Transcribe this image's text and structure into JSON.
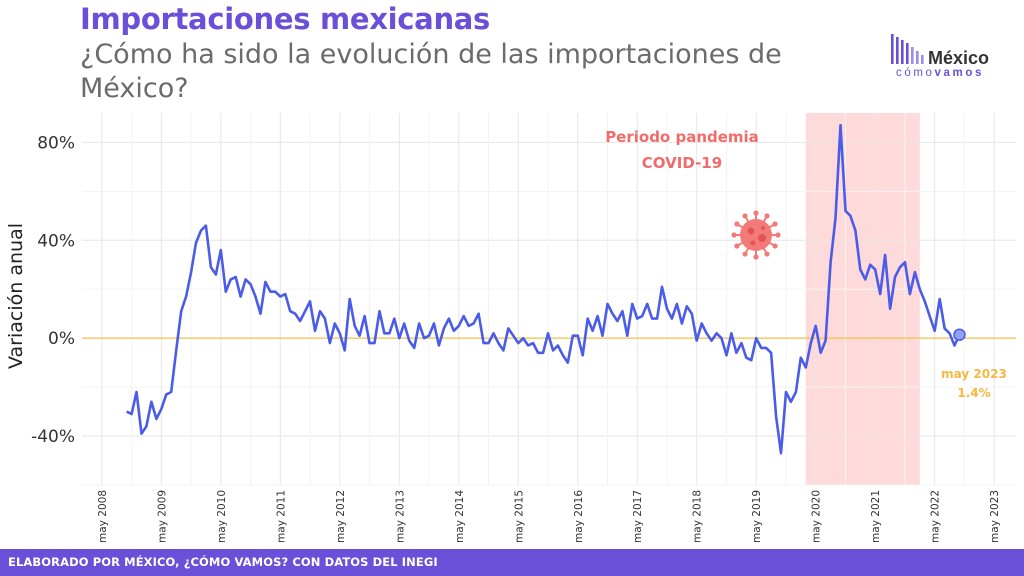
{
  "header": {
    "title": "Importaciones mexicanas",
    "subtitle": "¿Cómo ha sido la evolución de las importaciones de México?"
  },
  "logo": {
    "name": "México",
    "tagline_a": "cómo",
    "tagline_b": "vamos"
  },
  "footer": {
    "credit": "ELABORADO POR MÉXICO, ¿CÓMO VAMOS? CON DATOS DEL INEGI"
  },
  "annotations": {
    "pandemic_line1": "Periodo pandemia",
    "pandemic_line2": "COVID-19",
    "last_date": "may 2023",
    "last_value": "1.4%"
  },
  "colors": {
    "line": "#4a5ce8",
    "zero_line": "#f5c04a",
    "pandemic_band": "#ffdada",
    "pandemic_text": "#f26b6b",
    "last_label": "#f5b942",
    "brand": "#6a4fd8"
  },
  "chart_data": {
    "type": "line",
    "title": "",
    "ylabel": "Variación anual",
    "xlabel": "",
    "ylim": [
      -60,
      92
    ],
    "xlim": [
      2008.0,
      2023.7
    ],
    "y_ticks": [
      -40,
      0,
      40,
      80
    ],
    "y_tick_labels": [
      "-40%",
      "0%",
      "40%",
      "80%"
    ],
    "x_ticks": [
      "may 2008",
      "may 2009",
      "may 2010",
      "may 2011",
      "may 2012",
      "may 2013",
      "may 2014",
      "may 2015",
      "may 2016",
      "may 2017",
      "may 2018",
      "may 2019",
      "may 2020",
      "may 2021",
      "may 2022",
      "may 2023"
    ],
    "grid": true,
    "pandemic_period": [
      "2020-03",
      "2022-02"
    ],
    "series": [
      {
        "start": "2008-10",
        "values": [
          -30,
          -31,
          -22,
          -39,
          -36,
          -26,
          -33,
          -29,
          -23,
          -22,
          -5,
          11,
          17,
          27,
          39,
          44,
          46,
          29,
          26,
          36,
          19,
          24,
          25,
          17,
          24,
          22,
          17,
          10,
          23,
          19,
          19,
          17,
          18,
          11,
          10,
          7,
          11,
          15,
          3,
          11,
          8,
          -2,
          6,
          2,
          -5,
          16,
          5,
          1,
          9,
          -2,
          -2,
          11,
          2,
          2,
          8,
          0,
          6,
          -1,
          -4,
          6,
          0,
          1,
          6,
          -3,
          4,
          8,
          3,
          5,
          9,
          5,
          6,
          10,
          -2,
          -2,
          2,
          -2,
          -5,
          4,
          1,
          -2,
          0,
          -3,
          -2,
          -6,
          -6,
          2,
          -5,
          -3,
          -7,
          -10,
          1,
          1,
          -7,
          8,
          3,
          9,
          1,
          14,
          10,
          7,
          11,
          1,
          14,
          8,
          9,
          14,
          8,
          8,
          21,
          12,
          8,
          14,
          6,
          13,
          10,
          -1,
          6,
          2,
          -1,
          2,
          0,
          -7,
          2,
          -6,
          -2,
          -8,
          -9,
          0,
          -4,
          -4,
          -6,
          -32,
          -47,
          -22,
          -26,
          -22,
          -8,
          -12,
          -2,
          5,
          -6,
          -1,
          31,
          49,
          87,
          52,
          50,
          44,
          28,
          24,
          30,
          28,
          18,
          34,
          12,
          25,
          29,
          31,
          18,
          27,
          20,
          15,
          9,
          3,
          16,
          4,
          2,
          -3,
          1.4
        ]
      }
    ],
    "last_point": {
      "date": "may 2023",
      "value": 1.4
    }
  }
}
